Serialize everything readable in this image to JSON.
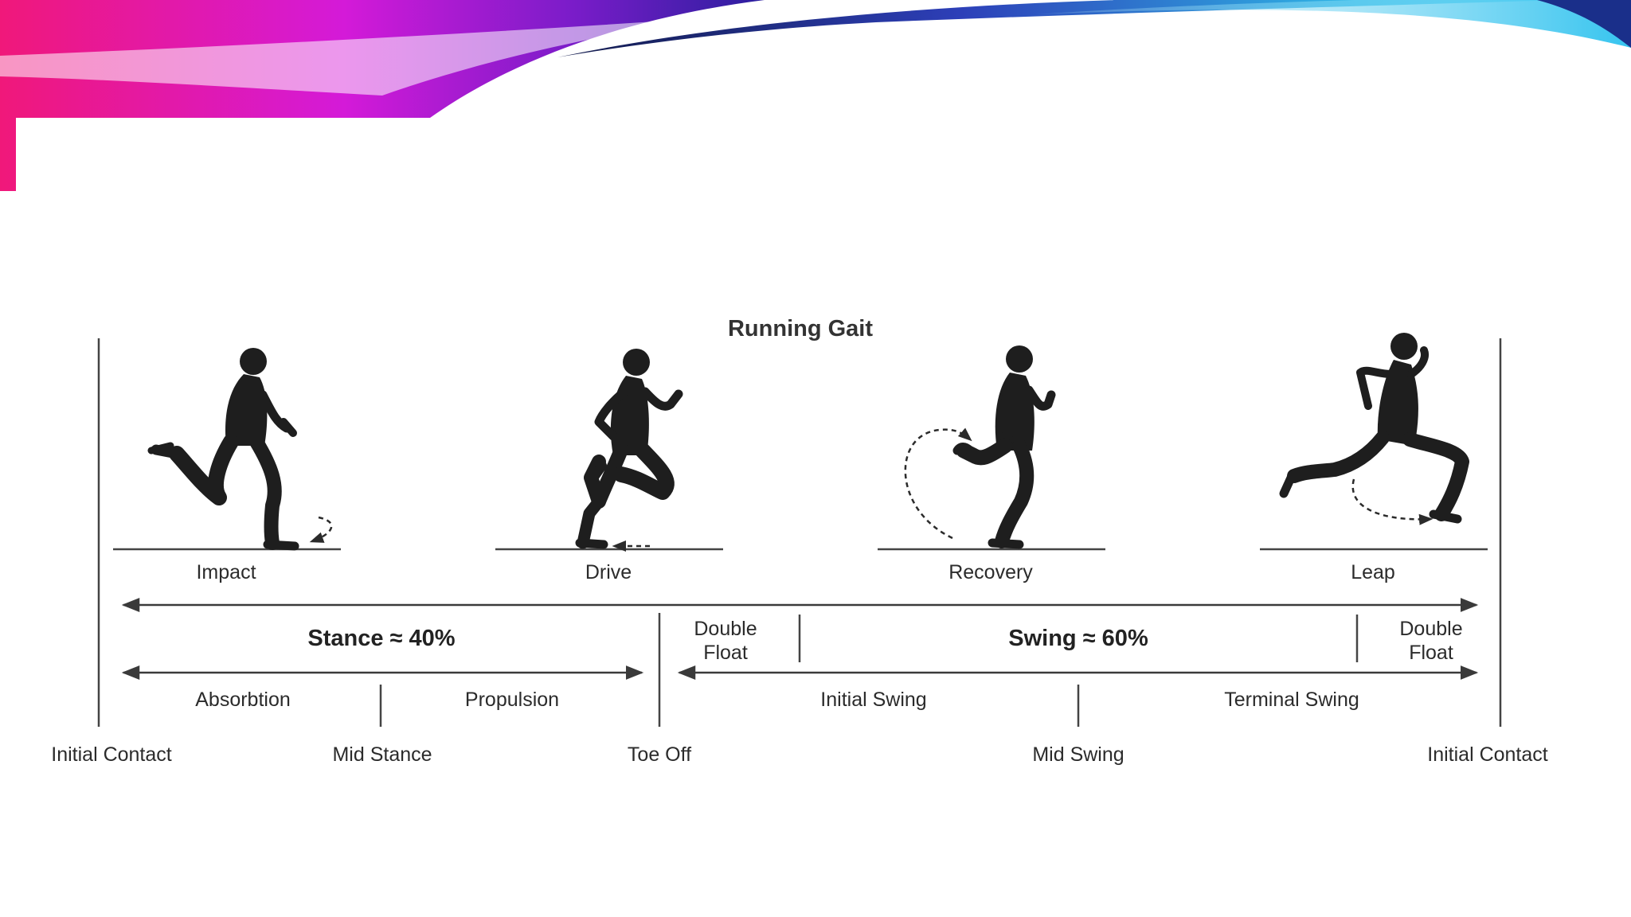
{
  "title": "Running Gait",
  "phases": [
    {
      "label": "Impact",
      "icon": "runner-impact-icon"
    },
    {
      "label": "Drive",
      "icon": "runner-drive-icon"
    },
    {
      "label": "Recovery",
      "icon": "runner-recovery-icon"
    },
    {
      "label": "Leap",
      "icon": "runner-leap-icon"
    }
  ],
  "stance": {
    "label": "Stance ≈ 40%",
    "percent": 40
  },
  "swing": {
    "label": "Swing ≈ 60%",
    "percent": 60
  },
  "double_float": [
    "Double Float",
    "Double Float"
  ],
  "sub_phases": [
    "Absorbtion",
    "Propulsion",
    "Initial Swing",
    "Terminal Swing"
  ],
  "events": [
    "Initial Contact",
    "Mid Stance",
    "Toe Off",
    "Mid Swing",
    "Initial Contact"
  ],
  "colors": {
    "banner_pink": "#e8157a",
    "banner_magenta": "#c21ee0",
    "banner_purple": "#3a1aa8",
    "banner_cyan": "#2fb8e6",
    "ink": "#2b2b2b",
    "silhouette": "#1e1e1e"
  }
}
